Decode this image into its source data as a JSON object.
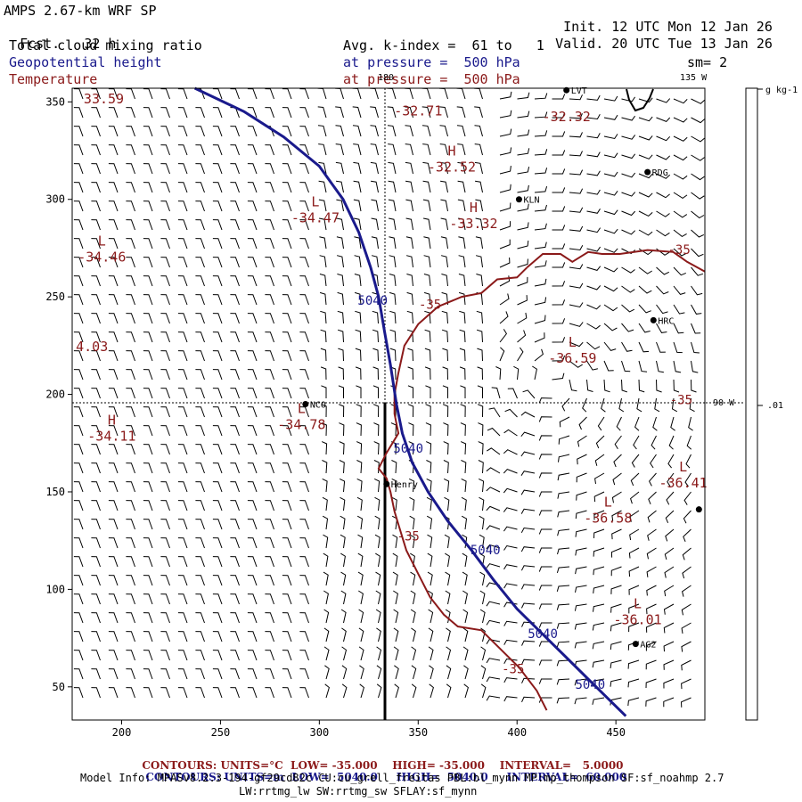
{
  "header": {
    "model": "AMPS 2.67-km WRF SP",
    "fcst_label": "Fcst.",
    "fcst_value": "32 h",
    "init_label": "Init.",
    "init_value": "12 UTC Mon 12 Jan 26",
    "valid_label": "Valid.",
    "valid_value": "20 UTC Tue 13 Jan 26",
    "field1": "Total cloud mixing ratio",
    "field2": "Geopotential height",
    "field3": "Temperature",
    "avg_line": "Avg. k-index =  61 to   1",
    "pres_line_blue": "at pressure =  500 hPa",
    "pres_line_red": "at pressure =  500 hPa",
    "sm": "sm= 2"
  },
  "colorbar": {
    "unit": "g kg-1",
    "tick": ".01"
  },
  "chart_data": {
    "type": "contour",
    "xlim": [
      175,
      495
    ],
    "ylim": [
      33,
      357
    ],
    "x_ticks": [
      200,
      250,
      300,
      350,
      400,
      450
    ],
    "y_ticks": [
      50,
      100,
      150,
      200,
      250,
      300,
      350
    ],
    "meridian_labels": [
      "180",
      "135 W",
      "90 W"
    ],
    "height_contours": [
      {
        "value": "5040",
        "points": [
          [
            237,
            357
          ],
          [
            262,
            345
          ],
          [
            282,
            332
          ],
          [
            300,
            317
          ],
          [
            312,
            300
          ],
          [
            320,
            283
          ],
          [
            326,
            265
          ],
          [
            330,
            250
          ],
          [
            333,
            232
          ],
          [
            336,
            215
          ],
          [
            339,
            195
          ],
          [
            342,
            180
          ],
          [
            347,
            165
          ],
          [
            355,
            150
          ],
          [
            365,
            135
          ],
          [
            377,
            120
          ],
          [
            388,
            105
          ],
          [
            400,
            90
          ],
          [
            414,
            76
          ],
          [
            428,
            62
          ],
          [
            442,
            48
          ],
          [
            455,
            35
          ]
        ]
      }
    ],
    "height_labels": [
      {
        "text": "5040",
        "x": 327,
        "y": 246
      },
      {
        "text": "5040",
        "x": 345,
        "y": 170
      },
      {
        "text": "5040",
        "x": 384,
        "y": 118
      },
      {
        "text": "5040",
        "x": 413,
        "y": 75
      },
      {
        "text": "5040",
        "x": 437,
        "y": 49
      }
    ],
    "temperature_contours": [
      {
        "value": "-35",
        "points": [
          [
            405,
            265
          ],
          [
            400,
            260
          ],
          [
            390,
            259
          ],
          [
            382,
            252
          ],
          [
            372,
            250
          ],
          [
            360,
            245
          ],
          [
            350,
            236
          ],
          [
            343,
            225
          ],
          [
            340,
            211
          ],
          [
            338,
            200
          ],
          [
            338,
            190
          ],
          [
            340,
            180
          ],
          [
            334,
            170
          ],
          [
            330,
            162
          ],
          [
            334,
            157
          ],
          [
            336,
            150
          ],
          [
            338,
            140
          ],
          [
            341,
            130
          ],
          [
            344,
            120
          ],
          [
            350,
            108
          ],
          [
            356,
            96
          ],
          [
            363,
            87
          ],
          [
            370,
            81
          ],
          [
            382,
            79
          ],
          [
            390,
            71
          ],
          [
            401,
            60
          ],
          [
            410,
            48
          ],
          [
            415,
            38
          ]
        ]
      },
      {
        "value": "-35",
        "points": [
          [
            405,
            265
          ],
          [
            413,
            272
          ],
          [
            422,
            272
          ],
          [
            428,
            268
          ],
          [
            436,
            273
          ],
          [
            443,
            272
          ],
          [
            452,
            272
          ],
          [
            466,
            274
          ],
          [
            479,
            273
          ],
          [
            486,
            268
          ],
          [
            495,
            263
          ]
        ]
      }
    ],
    "temperature_labels": [
      {
        "text": "-35",
        "x": 356,
        "y": 244
      },
      {
        "text": "-35",
        "x": 482,
        "y": 272
      },
      {
        "text": "-35",
        "x": 345,
        "y": 125
      },
      {
        "text": "-35",
        "x": 398,
        "y": 57
      },
      {
        "text": "-35",
        "x": 483,
        "y": 195
      }
    ],
    "extrema": [
      {
        "letter": "",
        "value": "33.59",
        "x": 191,
        "y": 351
      },
      {
        "letter": "",
        "value": "-32.71",
        "x": 350,
        "y": 345
      },
      {
        "letter": "",
        "value": "-32.32",
        "x": 425,
        "y": 342
      },
      {
        "letter": "H",
        "value": "-32.52",
        "x": 367,
        "y": 316
      },
      {
        "letter": "H",
        "value": "-33.32",
        "x": 378,
        "y": 287
      },
      {
        "letter": "L",
        "value": "-34.47",
        "x": 298,
        "y": 290
      },
      {
        "letter": "L",
        "value": "-34.46",
        "x": 190,
        "y": 270
      },
      {
        "letter": "",
        "value": "4.03",
        "x": 185,
        "y": 224
      },
      {
        "letter": "L",
        "value": "-36.59",
        "x": 428,
        "y": 218
      },
      {
        "letter": "L",
        "value": "-34.78",
        "x": 291,
        "y": 184
      },
      {
        "letter": "H",
        "value": "-34.11",
        "x": 195,
        "y": 178
      },
      {
        "letter": "L",
        "value": "-36.41",
        "x": 484,
        "y": 154
      },
      {
        "letter": "L",
        "value": "-36.58",
        "x": 446,
        "y": 136
      },
      {
        "letter": "L",
        "value": "-36.01",
        "x": 461,
        "y": 84
      }
    ],
    "stations": [
      {
        "name": "RDG",
        "x": 466,
        "y": 314
      },
      {
        "name": "KLN",
        "x": 401,
        "y": 300
      },
      {
        "name": "HRC",
        "x": 469,
        "y": 238
      },
      {
        "name": "NCO",
        "x": 293,
        "y": 195
      },
      {
        "name": "Henry",
        "x": 334,
        "y": 154
      },
      {
        "name": "AG2",
        "x": 460,
        "y": 72
      },
      {
        "name": "LVT",
        "x": 425,
        "y": 356
      },
      {
        "name": "",
        "x": 492,
        "y": 141
      }
    ]
  },
  "footer": {
    "contours_label": "CONTOURS:",
    "red_units": "UNITS=°C",
    "red_low": "LOW= -35.000",
    "red_high": "HIGH= -35.000",
    "red_interval": "INTERVAL=   5.0000",
    "blue_units": "UNITS=m",
    "blue_low": "LOW=  5040.0",
    "blue_high": "HIGH=  5040.0",
    "blue_interval": "INTERVAL=  60.000",
    "model_info": "Model Info: MPASv8.2.3-194-gf29cd82c CU:cu_grell_freitas PBL:bl_mynn MP:mp_thompson SF:sf_noahmp 2.7",
    "model_info2": "LW:rrtmg_lw SW:rrtmg_sw SFLAY:sf_mynn"
  },
  "colors": {
    "height": "#1a1a8c",
    "temperature": "#8b1a1a",
    "barbs": "#000000"
  }
}
